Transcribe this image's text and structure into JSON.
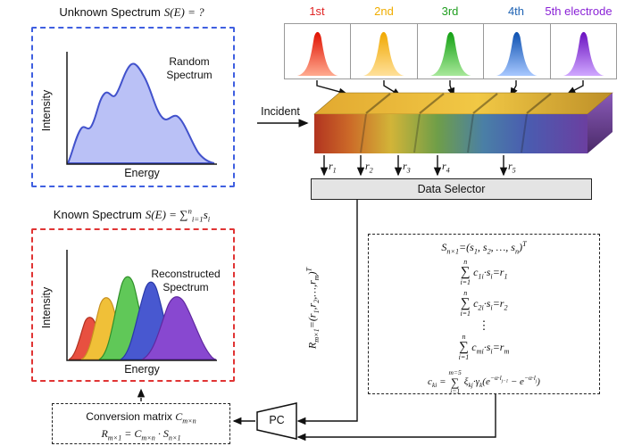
{
  "unknown_panel": {
    "title_text": "Unknown Spectrum",
    "title_math": "S(E) = ?",
    "plot_label": "Random Spectrum",
    "xlabel": "Energy",
    "ylabel": "Intensity",
    "curve_color": "#4252cc",
    "border_color": "#3f5fe0"
  },
  "electrodes": {
    "labels": [
      "1st",
      "2nd",
      "3rd",
      "4th",
      "5th electrode"
    ],
    "colors": [
      "#e02424",
      "#f0ad00",
      "#1f9e1f",
      "#1f63b4",
      "#8a22d6"
    ]
  },
  "incident_label": "Incident",
  "response_labels": [
    "r_{1}",
    "r_{2}",
    "r_{3}",
    "r_{4}",
    "r_{5}"
  ],
  "data_selector_label": "Data Selector",
  "r_vector_math": "R_{m×1}=(r_{1},r_{2},…,r_{m})^{T}",
  "equations": {
    "sigma": "∑",
    "s_vector": "S_{n×1}=(s_{1}, s_{2}, …, s_{n})^{T}",
    "sums": [
      {
        "sup": "n",
        "sub": "i=1",
        "rest": "c_{1i}·s_{i}=r_{1}"
      },
      {
        "sup": "n",
        "sub": "i=1",
        "rest": "c_{2i}·s_{i}=r_{2}"
      },
      {
        "sup": "n",
        "sub": "i=1",
        "rest": "c_{mi}·s_{i}=r_{m}"
      }
    ],
    "vdots": "⋮",
    "cki_lead": "c_{ki} =",
    "cki_sup": "m=5",
    "cki_sub": "j=1",
    "cki_rest": "ξ_{kj}·γ_{k}(e^{−α·l_{j−1}} − e^{−α·l_{j}})"
  },
  "pc_label": "PC",
  "conversion_box": {
    "line1_text": "Conversion matrix",
    "line1_math": "C_{m×n}",
    "line2_math": "R_{m×1} = C_{m×n} · S_{n×1}"
  },
  "known_panel": {
    "title_text": "Known Spectrum",
    "title_math": "S(E) = ∑^{n}_{i=1}s_{i}",
    "plot_label": "Reconstructed Spectrum",
    "xlabel": "Energy",
    "ylabel": "Intensity",
    "border_color": "#e03434"
  }
}
